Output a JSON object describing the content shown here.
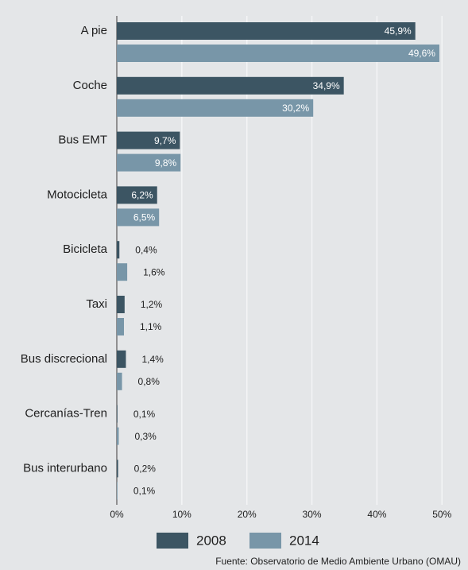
{
  "chart_data": {
    "type": "hbar",
    "categories": [
      "A pie",
      "Coche",
      "Bus EMT",
      "Motocicleta",
      "Bicicleta",
      "Taxi",
      "Bus discrecional",
      "Cercanías-Tren",
      "Bus interurbano"
    ],
    "series": [
      {
        "name": "2008",
        "color": "#3c5563",
        "values": [
          45.9,
          34.9,
          9.7,
          6.2,
          0.4,
          1.2,
          1.4,
          0.1,
          0.2
        ],
        "value_labels": [
          "45,9%",
          "34,9%",
          "9,7%",
          "6,2%",
          "0,4%",
          "1,2%",
          "1,4%",
          "0,1%",
          "0,2%"
        ]
      },
      {
        "name": "2014",
        "color": "#7896a8",
        "values": [
          49.6,
          30.2,
          9.8,
          6.5,
          1.6,
          1.1,
          0.8,
          0.3,
          0.1
        ],
        "value_labels": [
          "49,6%",
          "30,2%",
          "9,8%",
          "6,5%",
          "1,6%",
          "1,1%",
          "0,8%",
          "0,3%",
          "0,1%"
        ]
      }
    ],
    "xlim": [
      0,
      54
    ],
    "xticks": [
      {
        "value": 0,
        "label": "0%"
      },
      {
        "value": 10,
        "label": "10%"
      },
      {
        "value": 20,
        "label": "20%"
      },
      {
        "value": 30,
        "label": "30%"
      },
      {
        "value": 40,
        "label": "40%"
      },
      {
        "value": 50,
        "label": "50%"
      }
    ],
    "grid": true,
    "source": "Fuente: Observatorio de Medio Ambiente Urbano (OMAU)"
  }
}
